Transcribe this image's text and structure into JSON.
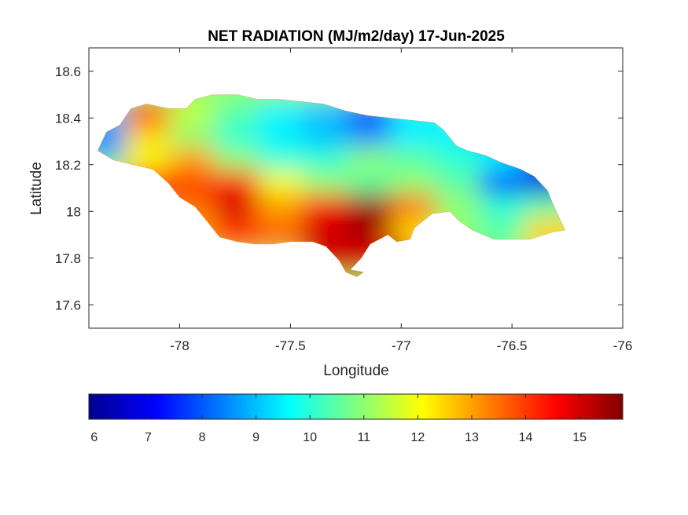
{
  "chart_data": {
    "type": "heatmap",
    "title": "NET RADIATION (MJ/m2/day) 17-Jun-2025",
    "xlabel": "Longitude",
    "ylabel": "Latitude",
    "xlim": [
      -78.41,
      -76.0
    ],
    "ylim": [
      17.5,
      18.7
    ],
    "xticks": [
      -78,
      -77.5,
      -77,
      -76.5,
      -76
    ],
    "xtick_labels": [
      "-78",
      "-77.5",
      "-77",
      "-76.5",
      "-76"
    ],
    "yticks": [
      17.6,
      17.8,
      18,
      18.2,
      18.4,
      18.6
    ],
    "ytick_labels": [
      "17.6",
      "17.8",
      "18",
      "18.2",
      "18.4",
      "18.6"
    ],
    "colormap": "jet",
    "colorbar": {
      "location": "bottom",
      "range": [
        5.9,
        15.8
      ],
      "ticks": [
        6,
        7,
        8,
        9,
        10,
        11,
        12,
        13,
        14,
        15
      ],
      "tick_labels": [
        "6",
        "7",
        "8",
        "9",
        "10",
        "11",
        "12",
        "13",
        "14",
        "15"
      ]
    },
    "region_outline": [
      [
        -78.37,
        18.26
      ],
      [
        -78.33,
        18.34
      ],
      [
        -78.27,
        18.37
      ],
      [
        -78.22,
        18.44
      ],
      [
        -78.15,
        18.46
      ],
      [
        -78.05,
        18.44
      ],
      [
        -77.97,
        18.44
      ],
      [
        -77.93,
        18.48
      ],
      [
        -77.85,
        18.5
      ],
      [
        -77.74,
        18.5
      ],
      [
        -77.65,
        18.48
      ],
      [
        -77.55,
        18.48
      ],
      [
        -77.45,
        18.47
      ],
      [
        -77.35,
        18.46
      ],
      [
        -77.25,
        18.43
      ],
      [
        -77.15,
        18.41
      ],
      [
        -77.05,
        18.4
      ],
      [
        -76.95,
        18.39
      ],
      [
        -76.85,
        18.38
      ],
      [
        -76.81,
        18.35
      ],
      [
        -76.75,
        18.28
      ],
      [
        -76.7,
        18.26
      ],
      [
        -76.62,
        18.24
      ],
      [
        -76.55,
        18.21
      ],
      [
        -76.46,
        18.18
      ],
      [
        -76.4,
        18.15
      ],
      [
        -76.34,
        18.09
      ],
      [
        -76.31,
        18.02
      ],
      [
        -76.28,
        17.96
      ],
      [
        -76.26,
        17.92
      ],
      [
        -76.32,
        17.91
      ],
      [
        -76.42,
        17.88
      ],
      [
        -76.58,
        17.88
      ],
      [
        -76.68,
        17.92
      ],
      [
        -76.74,
        17.96
      ],
      [
        -76.78,
        18.0
      ],
      [
        -76.86,
        17.99
      ],
      [
        -76.94,
        17.93
      ],
      [
        -76.96,
        17.88
      ],
      [
        -77.02,
        17.87
      ],
      [
        -77.06,
        17.9
      ],
      [
        -77.1,
        17.88
      ],
      [
        -77.14,
        17.86
      ],
      [
        -77.18,
        17.8
      ],
      [
        -77.21,
        17.77
      ],
      [
        -77.23,
        17.75
      ],
      [
        -77.17,
        17.74
      ],
      [
        -77.2,
        17.72
      ],
      [
        -77.25,
        17.74
      ],
      [
        -77.28,
        17.79
      ],
      [
        -77.34,
        17.85
      ],
      [
        -77.4,
        17.87
      ],
      [
        -77.5,
        17.87
      ],
      [
        -77.58,
        17.86
      ],
      [
        -77.66,
        17.86
      ],
      [
        -77.74,
        17.87
      ],
      [
        -77.82,
        17.89
      ],
      [
        -77.87,
        17.95
      ],
      [
        -77.93,
        18.02
      ],
      [
        -78.0,
        18.06
      ],
      [
        -78.05,
        18.12
      ],
      [
        -78.12,
        18.18
      ],
      [
        -78.21,
        18.2
      ],
      [
        -78.3,
        18.22
      ],
      [
        -78.37,
        18.26
      ]
    ],
    "grid_values": {
      "lon": [
        -78.3,
        -78.1,
        -77.9,
        -77.7,
        -77.5,
        -77.3,
        -77.1,
        -76.9,
        -76.7,
        -76.5,
        -76.3
      ],
      "lat": [
        18.4,
        18.3,
        18.2,
        18.1,
        18.0,
        17.9,
        17.8
      ],
      "values": [
        [
          9.0,
          14.0,
          11.5,
          10.5,
          9.5,
          9.0,
          7.8,
          9.5,
          null,
          null,
          null
        ],
        [
          8.5,
          12.5,
          11.0,
          10.0,
          9.5,
          9.0,
          8.5,
          9.5,
          9.5,
          9.0,
          null
        ],
        [
          null,
          12.0,
          13.0,
          11.0,
          10.0,
          10.0,
          11.0,
          10.5,
          10.0,
          9.5,
          8.0
        ],
        [
          null,
          14.0,
          14.0,
          14.5,
          12.0,
          11.0,
          10.5,
          11.0,
          10.5,
          7.5,
          6.8
        ],
        [
          null,
          null,
          13.5,
          15.0,
          13.0,
          14.5,
          15.5,
          13.5,
          11.0,
          10.0,
          10.5
        ],
        [
          null,
          null,
          13.0,
          14.0,
          13.5,
          15.0,
          15.5,
          12.5,
          11.0,
          10.5,
          12.5
        ],
        [
          null,
          null,
          null,
          null,
          null,
          15.0,
          15.0,
          null,
          null,
          null,
          null
        ]
      ]
    }
  }
}
